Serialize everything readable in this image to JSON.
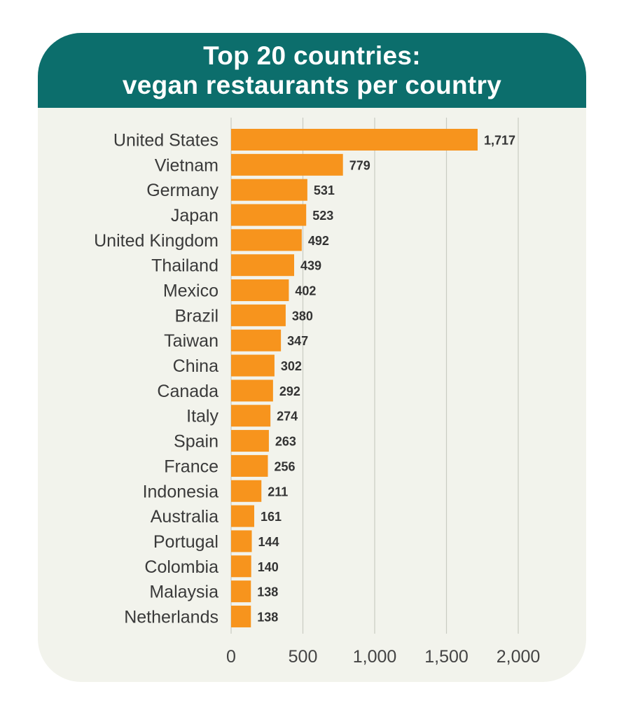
{
  "chart_data": {
    "type": "bar",
    "orientation": "horizontal",
    "title_lines": [
      "Top 20 countries:",
      "vegan restaurants per country"
    ],
    "categories": [
      "United States",
      "Vietnam",
      "Germany",
      "Japan",
      "United Kingdom",
      "Thailand",
      "Mexico",
      "Brazil",
      "Taiwan",
      "China",
      "Canada",
      "Italy",
      "Spain",
      "France",
      "Indonesia",
      "Australia",
      "Portugal",
      "Colombia",
      "Malaysia",
      "Netherlands"
    ],
    "values": [
      1717,
      779,
      531,
      523,
      492,
      439,
      402,
      380,
      347,
      302,
      292,
      274,
      263,
      256,
      211,
      161,
      144,
      140,
      138,
      138
    ],
    "value_labels": [
      "1,717",
      "779",
      "531",
      "523",
      "492",
      "439",
      "402",
      "380",
      "347",
      "302",
      "292",
      "274",
      "263",
      "256",
      "211",
      "161",
      "144",
      "140",
      "138",
      "138"
    ],
    "xlim": [
      0,
      2000
    ],
    "xticks": [
      0,
      500,
      1000,
      1500,
      2000
    ],
    "xtick_labels": [
      "0",
      "500",
      "1,000",
      "1,500",
      "2,000"
    ],
    "xlabel": "",
    "ylabel": "",
    "grid": true,
    "legend": "none",
    "colors": {
      "bar": "#f7941d",
      "header": "#0c6e6c",
      "panel": "#f2f3ec",
      "title_text": "#ffffff",
      "label_text": "#3a3a3a"
    }
  }
}
